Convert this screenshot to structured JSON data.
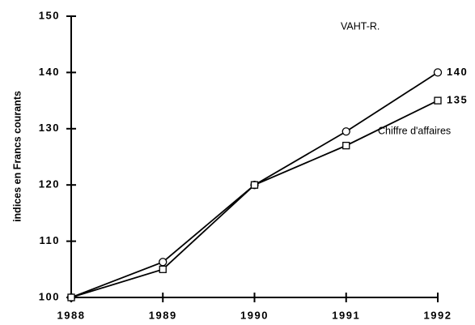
{
  "chart_data": {
    "type": "line",
    "ylabel": "indices en Francs courants",
    "x": [
      1988,
      1989,
      1990,
      1991,
      1992
    ],
    "xlim": [
      1988,
      1992
    ],
    "xticks": [
      1988,
      1989,
      1990,
      1991,
      1992
    ],
    "ylim": [
      100,
      150
    ],
    "yticks": [
      100,
      110,
      120,
      130,
      140,
      150
    ],
    "grid": false,
    "series": [
      {
        "name": "VAHT-R.",
        "color": "#000000",
        "marker": "circle",
        "values": [
          100,
          106.3,
          120,
          129.5,
          140
        ]
      },
      {
        "name": "Chiffre d'affaires",
        "color": "#000000",
        "marker": "square",
        "values": [
          100,
          105,
          120,
          127,
          135
        ]
      }
    ]
  }
}
